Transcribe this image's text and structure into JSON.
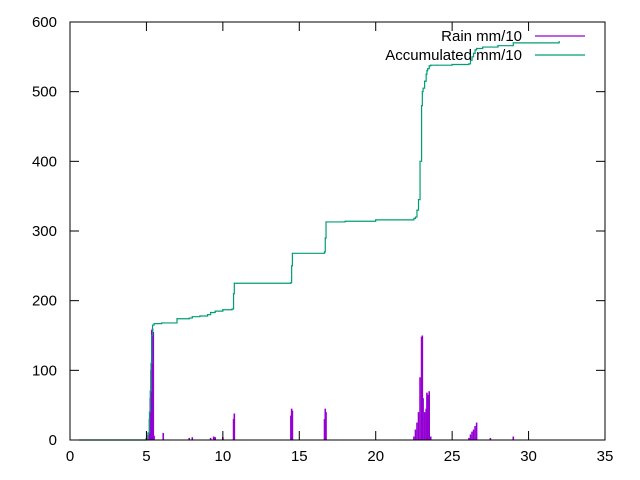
{
  "chart_data": {
    "type": "line",
    "title": "",
    "xlabel": "",
    "ylabel": "",
    "xlim": [
      0,
      35
    ],
    "ylim": [
      0,
      600
    ],
    "x_ticks": [
      "0",
      "5",
      "10",
      "15",
      "20",
      "25",
      "30",
      "35"
    ],
    "y_ticks": [
      "0",
      "100",
      "200",
      "300",
      "400",
      "500",
      "600"
    ],
    "grid": false,
    "legend_position": "top-right",
    "series": [
      {
        "name": "Rain mm/10",
        "style": "impulses",
        "color": "#9400d3",
        "x": [
          5.0,
          5.1,
          5.2,
          5.25,
          5.3,
          5.35,
          5.4,
          5.45,
          5.5,
          6.1,
          7.8,
          8.0,
          9.2,
          9.4,
          9.5,
          10.0,
          10.7,
          10.75,
          14.45,
          14.5,
          14.55,
          16.65,
          16.7,
          16.75,
          22.5,
          22.6,
          22.7,
          22.8,
          22.9,
          23.0,
          23.05,
          23.1,
          23.2,
          23.3,
          23.35,
          23.4,
          23.5,
          23.6,
          26.1,
          26.2,
          26.3,
          26.4,
          26.5,
          26.6,
          27.5,
          29.0
        ],
        "y": [
          3,
          7,
          30,
          60,
          100,
          158,
          160,
          155,
          6,
          10,
          3,
          4,
          3,
          5,
          4,
          4,
          30,
          38,
          35,
          45,
          42,
          30,
          45,
          40,
          5,
          15,
          25,
          40,
          90,
          148,
          150,
          60,
          40,
          45,
          68,
          65,
          70,
          5,
          3,
          8,
          12,
          15,
          20,
          25,
          3,
          5
        ]
      },
      {
        "name": "Accumulated mm/10",
        "style": "steps",
        "color": "#009e73",
        "x": [
          0.6,
          4.5,
          5.0,
          5.1,
          5.2,
          5.25,
          5.3,
          5.35,
          5.4,
          5.5,
          6.0,
          7.0,
          7.8,
          8.0,
          8.5,
          9.0,
          9.2,
          9.5,
          10.0,
          10.6,
          10.7,
          10.75,
          14.45,
          14.5,
          14.55,
          16.65,
          16.7,
          16.75,
          18.0,
          20.0,
          22.5,
          22.6,
          22.7,
          22.8,
          22.9,
          23.0,
          23.05,
          23.1,
          23.2,
          23.3,
          23.35,
          23.4,
          23.5,
          23.6,
          24.0,
          25.0,
          26.1,
          26.2,
          26.3,
          26.4,
          26.5,
          26.6,
          27.0,
          28.0,
          29.0,
          32.0
        ],
        "y": [
          0,
          0,
          2,
          10,
          40,
          70,
          110,
          150,
          165,
          167,
          168,
          174,
          175,
          177,
          178,
          180,
          183,
          185,
          187,
          188,
          210,
          225,
          226,
          250,
          268,
          270,
          290,
          313,
          314,
          316,
          318,
          320,
          330,
          345,
          400,
          480,
          500,
          505,
          515,
          525,
          530,
          533,
          537,
          538,
          538,
          539,
          540,
          545,
          550,
          555,
          560,
          562,
          564,
          566,
          570,
          572
        ]
      }
    ]
  }
}
